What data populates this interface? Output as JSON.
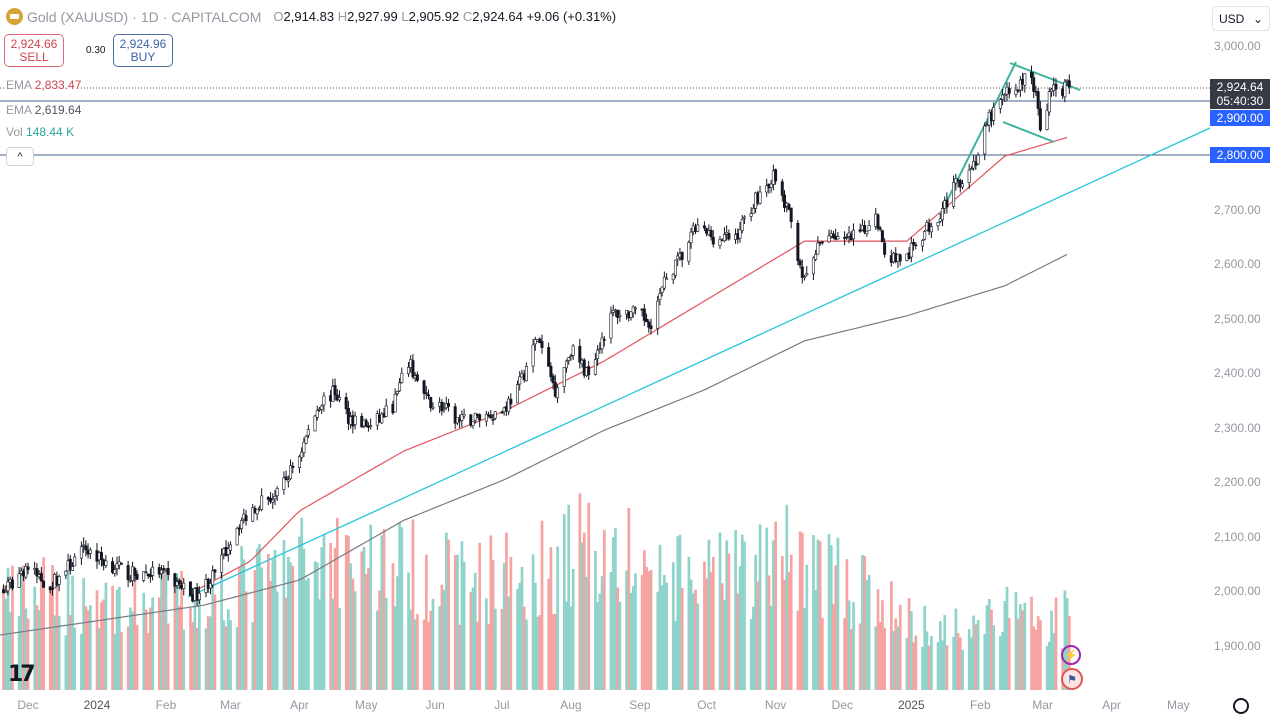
{
  "header": {
    "symbol": "Gold (XAUUSD)",
    "interval": "1D",
    "exchange": "CAPITALCOM",
    "sep": "·",
    "o_label": "O",
    "o": "2,914.83",
    "h_label": "H",
    "h": "2,927.99",
    "l_label": "L",
    "l": "2,905.92",
    "c_label": "C",
    "c": "2,924.64",
    "change": "+9.06 (+0.31%)"
  },
  "trade": {
    "sell_price": "2,924.66",
    "sell_label": "SELL",
    "spread": "0.30",
    "buy_price": "2,924.96",
    "buy_label": "BUY"
  },
  "indicators": [
    {
      "name": "EMA",
      "value": "2,833.47"
    },
    {
      "name": "EMA",
      "value": "2,619.64"
    },
    {
      "name": "Vol",
      "value": "148.44 K"
    }
  ],
  "currency": "USD",
  "price_labels": {
    "current": "2,924.64",
    "countdown": "05:40:30",
    "line1": "2,900.00",
    "line2": "2,800.00"
  },
  "colors": {
    "ema_fast": "#e0545c",
    "ema_slow": "#787b86",
    "trend": "#26c6da",
    "channel": "#3cb4a0",
    "vol_up": "#8fd3cb",
    "vol_down": "#f5a4a2",
    "line_label": "#2962ff",
    "current_label": "#363a45"
  },
  "chart_data": {
    "type": "candlestick",
    "title": "Gold (XAUUSD) · 1D · CAPITALCOM",
    "ylim": [
      1820,
      3030
    ],
    "y_ticks": [
      "3,000.00",
      "2,900.00",
      "2,800.00",
      "2,700.00",
      "2,600.00",
      "2,500.00",
      "2,400.00",
      "2,300.00",
      "2,200.00",
      "2,100.00",
      "2,000.00",
      "1,900.00"
    ],
    "y_tick_values": [
      3000,
      2900,
      2800,
      2700,
      2600,
      2500,
      2400,
      2300,
      2200,
      2100,
      2000,
      1900
    ],
    "x_ticks": [
      [
        "Dec",
        "2023-12-01"
      ],
      [
        "2024",
        "2024-01-01"
      ],
      [
        "Feb",
        "2024-02-01"
      ],
      [
        "Mar",
        "2024-03-01"
      ],
      [
        "Apr",
        "2024-04-01"
      ],
      [
        "May",
        "2024-05-01"
      ],
      [
        "Jun",
        "2024-06-01"
      ],
      [
        "Jul",
        "2024-07-01"
      ],
      [
        "Aug",
        "2024-08-01"
      ],
      [
        "Sep",
        "2024-09-01"
      ],
      [
        "Oct",
        "2024-10-01"
      ],
      [
        "Nov",
        "2024-11-01"
      ],
      [
        "Dec",
        "2024-12-01"
      ],
      [
        "2025",
        "2025-01-01"
      ],
      [
        "Feb",
        "2025-02-01"
      ],
      [
        "Mar",
        "2025-03-01"
      ],
      [
        "Apr",
        "2025-04-01"
      ],
      [
        "May",
        "2025-05-01"
      ]
    ],
    "close_anchors": [
      [
        "2023-11-21",
        2000
      ],
      [
        "2023-11-30",
        2045
      ],
      [
        "2023-12-04",
        2030
      ],
      [
        "2023-12-11",
        2010
      ],
      [
        "2023-12-27",
        2078
      ],
      [
        "2024-01-02",
        2060
      ],
      [
        "2024-01-16",
        2030
      ],
      [
        "2024-01-29",
        2035
      ],
      [
        "2024-02-14",
        1992
      ],
      [
        "2024-02-23",
        2030
      ],
      [
        "2024-03-04",
        2120
      ],
      [
        "2024-03-14",
        2165
      ],
      [
        "2024-03-22",
        2175
      ],
      [
        "2024-04-01",
        2250
      ],
      [
        "2024-04-10",
        2345
      ],
      [
        "2024-04-17",
        2365
      ],
      [
        "2024-04-23",
        2320
      ],
      [
        "2024-05-03",
        2300
      ],
      [
        "2024-05-13",
        2340
      ],
      [
        "2024-05-20",
        2420
      ],
      [
        "2024-05-28",
        2350
      ],
      [
        "2024-06-03",
        2340
      ],
      [
        "2024-06-12",
        2310
      ],
      [
        "2024-06-21",
        2320
      ],
      [
        "2024-07-01",
        2330
      ],
      [
        "2024-07-08",
        2370
      ],
      [
        "2024-07-17",
        2465
      ],
      [
        "2024-07-25",
        2370
      ],
      [
        "2024-08-01",
        2445
      ],
      [
        "2024-08-08",
        2400
      ],
      [
        "2024-08-20",
        2510
      ],
      [
        "2024-08-28",
        2510
      ],
      [
        "2024-09-06",
        2495
      ],
      [
        "2024-09-13",
        2575
      ],
      [
        "2024-09-20",
        2615
      ],
      [
        "2024-09-26",
        2665
      ],
      [
        "2024-10-07",
        2645
      ],
      [
        "2024-10-14",
        2650
      ],
      [
        "2024-10-23",
        2720
      ],
      [
        "2024-10-31",
        2760
      ],
      [
        "2024-11-07",
        2690
      ],
      [
        "2024-11-14",
        2565
      ],
      [
        "2024-11-19",
        2620
      ],
      [
        "2024-11-25",
        2660
      ],
      [
        "2024-12-02",
        2640
      ],
      [
        "2024-12-11",
        2660
      ],
      [
        "2024-12-16",
        2700
      ],
      [
        "2024-12-20",
        2615
      ],
      [
        "2024-12-30",
        2610
      ],
      [
        "2025-01-03",
        2640
      ],
      [
        "2025-01-13",
        2690
      ],
      [
        "2025-01-22",
        2750
      ],
      [
        "2025-01-30",
        2790
      ],
      [
        "2025-02-05",
        2865
      ],
      [
        "2025-02-12",
        2910
      ],
      [
        "2025-02-19",
        2930
      ],
      [
        "2025-02-24",
        2950
      ],
      [
        "2025-02-28",
        2858
      ],
      [
        "2025-03-05",
        2918
      ],
      [
        "2025-03-13",
        2924.64
      ]
    ],
    "ema_fast_anchors": [
      [
        "2024-02-14",
        2000
      ],
      [
        "2024-03-10",
        2055
      ],
      [
        "2024-04-01",
        2147
      ],
      [
        "2024-05-18",
        2257
      ],
      [
        "2024-07-02",
        2330
      ],
      [
        "2024-08-16",
        2422
      ],
      [
        "2024-09-30",
        2532
      ],
      [
        "2024-11-14",
        2642
      ],
      [
        "2024-12-30",
        2642
      ],
      [
        "2025-02-12",
        2798
      ],
      [
        "2025-03-13",
        2833.47
      ]
    ],
    "ema_slow_anchors": [
      [
        "2023-11-18",
        1919
      ],
      [
        "2024-02-18",
        1974
      ],
      [
        "2024-04-01",
        2020
      ],
      [
        "2024-05-18",
        2130
      ],
      [
        "2024-07-02",
        2204
      ],
      [
        "2024-08-16",
        2295
      ],
      [
        "2024-09-30",
        2369
      ],
      [
        "2024-11-14",
        2459
      ],
      [
        "2024-12-30",
        2505
      ],
      [
        "2025-02-12",
        2560
      ],
      [
        "2025-03-13",
        2619.64
      ]
    ],
    "volume_anchors_k": [
      [
        "2023-11-21",
        190
      ],
      [
        "2023-12-15",
        200
      ],
      [
        "2024-01-15",
        180
      ],
      [
        "2024-02-15",
        190
      ],
      [
        "2024-03-15",
        230
      ],
      [
        "2024-04-15",
        290
      ],
      [
        "2024-05-15",
        260
      ],
      [
        "2024-06-15",
        230
      ],
      [
        "2024-07-15",
        250
      ],
      [
        "2024-08-10",
        310
      ],
      [
        "2024-09-15",
        230
      ],
      [
        "2024-10-15",
        240
      ],
      [
        "2024-11-10",
        290
      ],
      [
        "2024-12-15",
        190
      ],
      [
        "2025-01-10",
        120
      ],
      [
        "2025-02-10",
        160
      ],
      [
        "2025-03-13",
        148.44
      ]
    ]
  }
}
